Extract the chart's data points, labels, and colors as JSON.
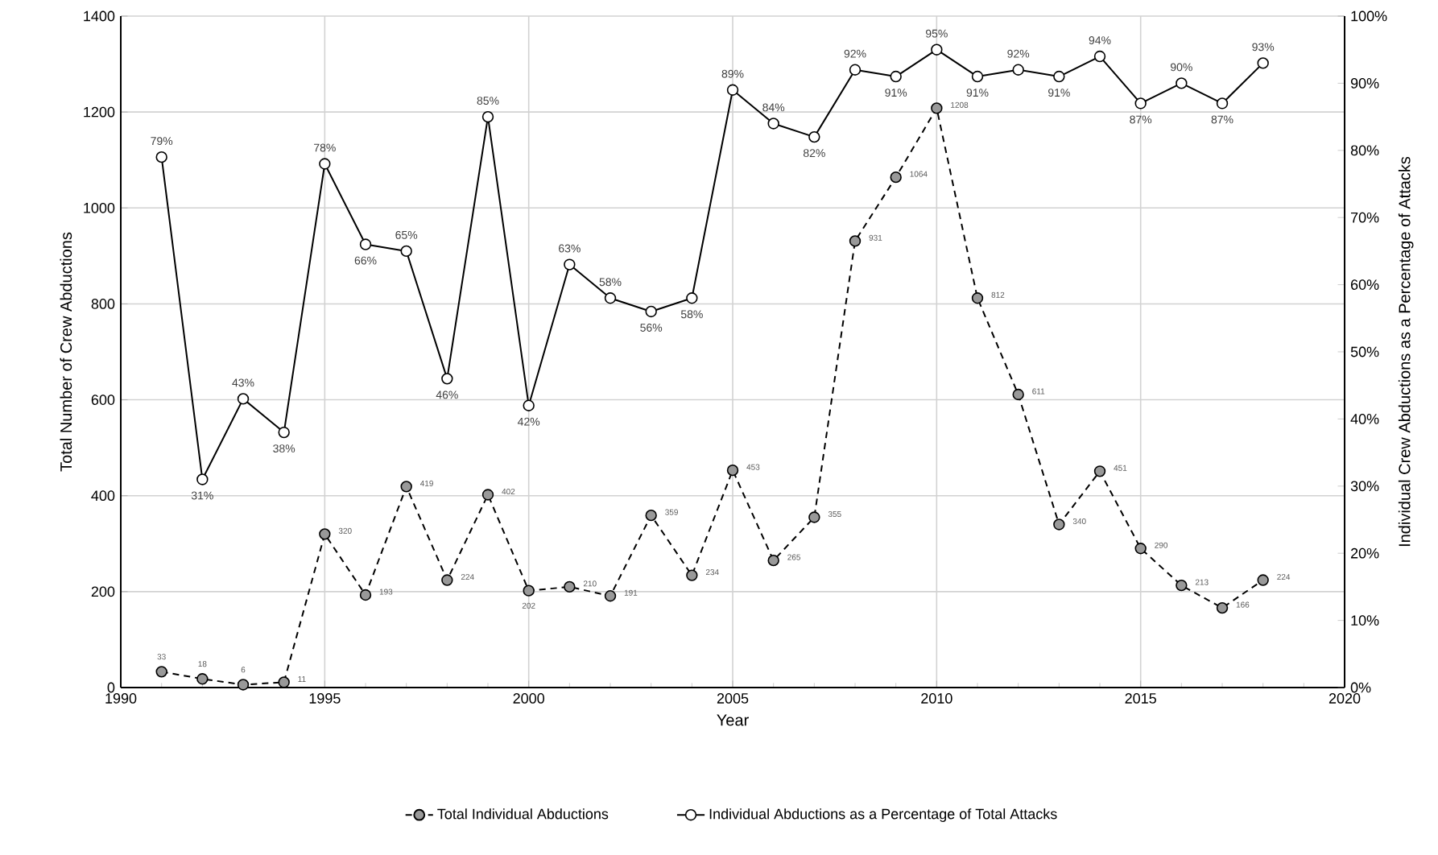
{
  "chart_data": {
    "type": "line",
    "xlabel": "Year",
    "ylabel": "Total Number of Crew Abductions",
    "y2label": "Individual Crew Abductions as a Percentage of  Attacks",
    "x": [
      1991,
      1992,
      1993,
      1994,
      1995,
      1996,
      1997,
      1998,
      1999,
      2000,
      2001,
      2002,
      2003,
      2004,
      2005,
      2006,
      2007,
      2008,
      2009,
      2010,
      2011,
      2012,
      2013,
      2014,
      2015,
      2016,
      2017,
      2018
    ],
    "xlim": [
      1990,
      2020
    ],
    "xticks": [
      1990,
      1995,
      2000,
      2005,
      2010,
      2015,
      2020
    ],
    "ylim": [
      0,
      1400
    ],
    "yticks": [
      0,
      200,
      400,
      600,
      800,
      1000,
      1200,
      1400
    ],
    "y2lim": [
      0,
      100
    ],
    "y2ticks": [
      {
        "value": 0,
        "label": "0%"
      },
      {
        "value": 10,
        "label": "10%"
      },
      {
        "value": 20,
        "label": "20%"
      },
      {
        "value": 30,
        "label": "30%"
      },
      {
        "value": 40,
        "label": "40%"
      },
      {
        "value": 50,
        "label": "50%"
      },
      {
        "value": 60,
        "label": "60%"
      },
      {
        "value": 70,
        "label": "70%"
      },
      {
        "value": 80,
        "label": "80%"
      },
      {
        "value": 90,
        "label": "90%"
      },
      {
        "value": 100,
        "label": "100%"
      }
    ],
    "grid": true,
    "legend": "bottom",
    "marker": "circle",
    "series": [
      {
        "name": "Total Individual Abductions",
        "color": "#999999",
        "line_style": "dashed",
        "values": [
          33,
          18,
          6,
          11,
          320,
          193,
          419,
          224,
          402,
          202,
          210,
          191,
          359,
          234,
          453,
          265,
          355,
          931,
          1064,
          1208,
          812,
          611,
          340,
          451,
          290,
          213,
          166,
          224
        ],
        "value_labels": [
          "33",
          "18",
          "6",
          "11",
          "320",
          "193",
          "419",
          "224",
          "402",
          "202",
          "210",
          "191",
          "359",
          "234",
          "453",
          "265",
          "355",
          "931",
          "1064",
          "1208",
          "812",
          "611",
          "340",
          "451",
          "290",
          "213",
          "166",
          "224"
        ]
      },
      {
        "name": "Individual Abductions as a Percentage of Total Attacks",
        "color": "#ffffff",
        "line_style": "solid",
        "axis": "y2",
        "values": [
          79,
          31,
          43,
          38,
          78,
          66,
          65,
          46,
          85,
          42,
          63,
          58,
          56,
          58,
          89,
          84,
          82,
          92,
          91,
          95,
          91,
          92,
          91,
          94,
          87,
          90,
          87,
          93
        ],
        "value_labels": [
          "79%",
          "31%",
          "43%",
          "38%",
          "78%",
          "66%",
          "65%",
          "46%",
          "85%",
          "42%",
          "63%",
          "58%",
          "56%",
          "58%",
          "89%",
          "84%",
          "82%",
          "92%",
          "91%",
          "95%",
          "91%",
          "92%",
          "91%",
          "94%",
          "87%",
          "90%",
          "87%",
          "93%"
        ]
      }
    ]
  }
}
